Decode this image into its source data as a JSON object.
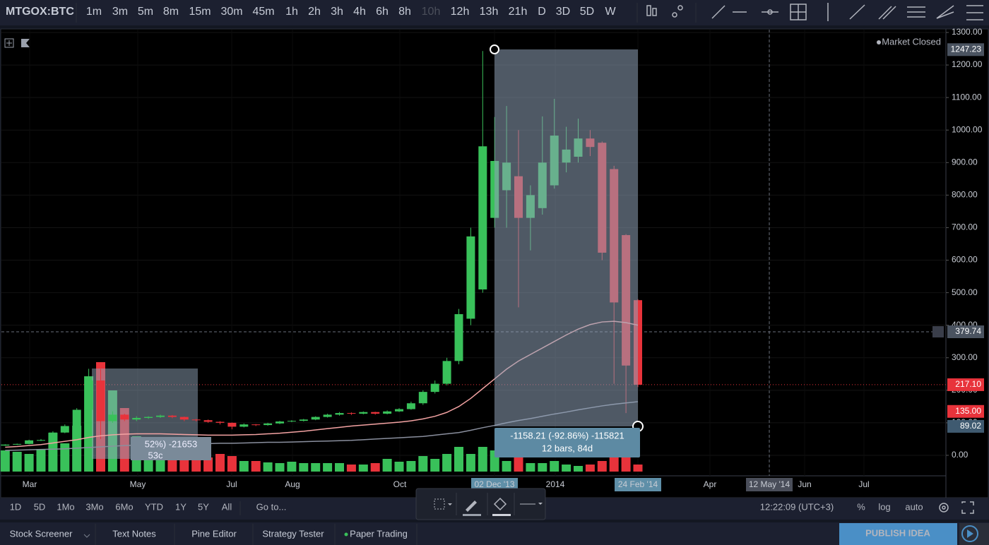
{
  "toolbar": {
    "symbol": "MTGOX:BTC",
    "intervals": [
      "1m",
      "3m",
      "5m",
      "8m",
      "15m",
      "30m",
      "45m",
      "1h",
      "2h",
      "3h",
      "4h",
      "6h",
      "8h",
      "10h",
      "12h",
      "13h",
      "21h",
      "D",
      "3D",
      "5D",
      "W"
    ]
  },
  "chart": {
    "type": "candlestick",
    "market_status": "Market Closed",
    "up_color": "#39c15a",
    "down_color": "#e8333b",
    "ylim": [
      -50,
      1300
    ],
    "yticks": [
      {
        "value": 0,
        "label": "0.00"
      },
      {
        "value": 100,
        "label": "100.00"
      },
      {
        "value": 200,
        "label": "200.00"
      },
      {
        "value": 300,
        "label": "300.00"
      },
      {
        "value": 400,
        "label": "400.00"
      },
      {
        "value": 500,
        "label": "500.00"
      },
      {
        "value": 600,
        "label": "600.00"
      },
      {
        "value": 700,
        "label": "700.00"
      },
      {
        "value": 800,
        "label": "800.00"
      },
      {
        "value": 900,
        "label": "900.00"
      },
      {
        "value": 1000,
        "label": "1000.00"
      },
      {
        "value": 1100,
        "label": "1100.00"
      },
      {
        "value": 1200,
        "label": "1200.00"
      },
      {
        "value": 1300,
        "label": "1300.00"
      }
    ],
    "open": [
      30,
      33,
      35,
      46,
      47,
      70,
      90,
      140,
      230,
      105,
      125,
      110,
      115,
      118,
      122,
      118,
      110,
      108,
      103,
      100,
      88,
      95,
      93,
      98,
      104,
      106,
      110,
      118,
      125,
      130,
      128,
      133,
      128,
      135,
      142,
      160,
      195,
      220,
      290,
      420,
      510,
      730,
      815,
      858,
      730,
      760,
      830,
      900,
      918,
      974,
      961,
      880,
      677,
      477
    ],
    "high": [
      34,
      36,
      48,
      50,
      74,
      95,
      145,
      266,
      266,
      135,
      128,
      120,
      120,
      125,
      124,
      119,
      112,
      110,
      105,
      101,
      98,
      96,
      100,
      106,
      108,
      112,
      120,
      128,
      133,
      132,
      135,
      134,
      138,
      145,
      165,
      200,
      230,
      300,
      450,
      700,
      1243,
      1040,
      1074,
      1000,
      830,
      1042,
      1096,
      1010,
      1035,
      1000,
      965,
      890,
      680,
      480
    ],
    "low": [
      29,
      32,
      34,
      44,
      45,
      68,
      88,
      135,
      50,
      100,
      105,
      105,
      112,
      115,
      114,
      105,
      104,
      100,
      95,
      80,
      86,
      90,
      91,
      96,
      102,
      104,
      108,
      116,
      122,
      124,
      126,
      125,
      126,
      133,
      140,
      155,
      190,
      215,
      280,
      400,
      500,
      700,
      700,
      455,
      630,
      740,
      820,
      870,
      900,
      920,
      600,
      220,
      130,
      210
    ],
    "close": [
      33,
      35,
      46,
      47,
      70,
      90,
      140,
      230,
      105,
      125,
      110,
      115,
      118,
      122,
      118,
      110,
      108,
      103,
      100,
      88,
      95,
      93,
      98,
      104,
      106,
      110,
      118,
      125,
      130,
      128,
      133,
      128,
      135,
      142,
      160,
      195,
      220,
      290,
      434,
      673,
      950,
      905,
      900,
      730,
      800,
      900,
      983,
      940,
      974,
      948,
      623,
      470,
      276,
      217
    ],
    "volume": [
      30,
      28,
      25,
      32,
      55,
      40,
      65,
      135,
      155,
      115,
      90,
      50,
      30,
      38,
      30,
      30,
      25,
      20,
      25,
      22,
      15,
      15,
      13,
      12,
      14,
      12,
      12,
      12,
      12,
      10,
      10,
      12,
      18,
      14,
      15,
      22,
      18,
      25,
      35,
      25,
      35,
      30,
      15,
      20,
      12,
      12,
      15,
      10,
      8,
      10,
      15,
      20,
      25,
      10
    ],
    "moving_averages": [
      {
        "color": "#f4a3a3",
        "values": [
          25,
          27,
          30,
          33,
          38,
          43,
          48,
          55,
          60,
          63,
          65,
          66,
          66,
          66,
          65,
          64,
          63,
          62,
          62,
          62,
          63,
          64,
          66,
          68,
          71,
          74,
          78,
          82,
          86,
          90,
          93,
          96,
          99,
          102,
          106,
          112,
          120,
          132,
          150,
          175,
          205,
          235,
          265,
          290,
          310,
          330,
          350,
          370,
          388,
          402,
          410,
          412,
          408,
          400
        ]
      },
      {
        "color": "#8a8f9e",
        "values": [
          15,
          16,
          17,
          18,
          19,
          20,
          22,
          24,
          26,
          28,
          30,
          31,
          32,
          33,
          34,
          35,
          35,
          36,
          37,
          37,
          38,
          39,
          40,
          40,
          41,
          42,
          43,
          44,
          45,
          46,
          48,
          50,
          52,
          54,
          56,
          58,
          62,
          66,
          70,
          77,
          85,
          92,
          100,
          107,
          113,
          120,
          127,
          133,
          140,
          146,
          152,
          157,
          161,
          165
        ]
      }
    ],
    "price_labels": [
      {
        "value": 1247.23,
        "label": "1247.23",
        "color": "#4a5360"
      },
      {
        "value": 379.74,
        "label": "379.74",
        "color": "#4a5360"
      },
      {
        "value": 217.1,
        "label": "217.10",
        "color": "#e8333b"
      },
      {
        "value": 135,
        "label": "135.00",
        "color": "#e8333b"
      },
      {
        "value": 89.02,
        "label": "89.02",
        "color": "#3f5a70"
      }
    ],
    "time_axis": [
      "Mar",
      "May",
      "Jul",
      "Aug",
      "Oct",
      "02 Dec '13",
      "2014",
      "24 Feb '14",
      "Apr",
      "12 May '14",
      "Jun",
      "Jul"
    ],
    "measure": {
      "change": "-1158.21 (-92.86%) -115821",
      "span": "12 bars, 84d"
    },
    "measure_old": {
      "change": "52%) -21653",
      "span": "53c"
    }
  },
  "range_bar": {
    "ranges": [
      "1D",
      "5D",
      "1Mo",
      "3Mo",
      "6Mo",
      "YTD",
      "1Y",
      "5Y",
      "All"
    ],
    "goto": "Go to...",
    "clock": "12:22:09 (UTC+3)",
    "percent": "%",
    "log": "log",
    "auto": "auto"
  },
  "tabs": [
    "Stock Screener",
    "Text Notes",
    "Pine Editor",
    "Strategy Tester",
    "Paper Trading"
  ],
  "publish": "PUBLISH IDEA"
}
